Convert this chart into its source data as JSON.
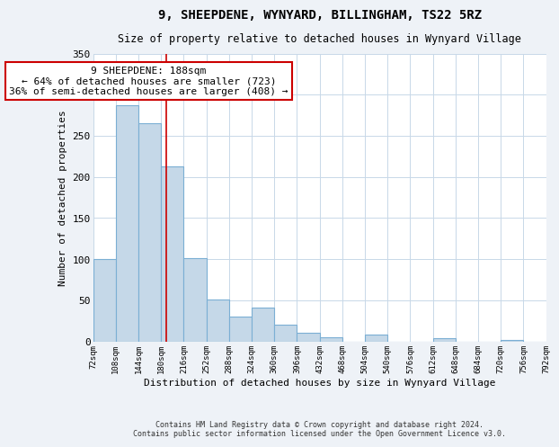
{
  "title": "9, SHEEPDENE, WYNYARD, BILLINGHAM, TS22 5RZ",
  "subtitle": "Size of property relative to detached houses in Wynyard Village",
  "xlabel": "Distribution of detached houses by size in Wynyard Village",
  "ylabel": "Number of detached properties",
  "footer_line1": "Contains HM Land Registry data © Crown copyright and database right 2024.",
  "footer_line2": "Contains public sector information licensed under the Open Government Licence v3.0.",
  "bin_edges": [
    72,
    108,
    144,
    180,
    216,
    252,
    288,
    324,
    360,
    396,
    432,
    468,
    504,
    540,
    576,
    612,
    648,
    684,
    720,
    756,
    792
  ],
  "bin_values": [
    100,
    287,
    265,
    213,
    101,
    51,
    30,
    41,
    20,
    10,
    5,
    0,
    8,
    0,
    0,
    4,
    0,
    0,
    2,
    0
  ],
  "bar_color": "#c5d8e8",
  "bar_edge_color": "#7bafd4",
  "vline_x": 188,
  "vline_color": "#cc0000",
  "annotation_text": "9 SHEEPDENE: 188sqm\n← 64% of detached houses are smaller (723)\n36% of semi-detached houses are larger (408) →",
  "annotation_box_color": "#ffffff",
  "annotation_box_edge_color": "#cc0000",
  "ylim": [
    0,
    350
  ],
  "yticks": [
    0,
    50,
    100,
    150,
    200,
    250,
    300,
    350
  ],
  "bg_color": "#eef2f7",
  "plot_bg_color": "#ffffff",
  "grid_color": "#c8d8e8",
  "title_fontsize": 10,
  "subtitle_fontsize": 8.5,
  "ylabel_fontsize": 8,
  "xlabel_fontsize": 8,
  "ytick_fontsize": 8,
  "xtick_fontsize": 6.5,
  "annotation_fontsize": 8,
  "footer_fontsize": 6
}
